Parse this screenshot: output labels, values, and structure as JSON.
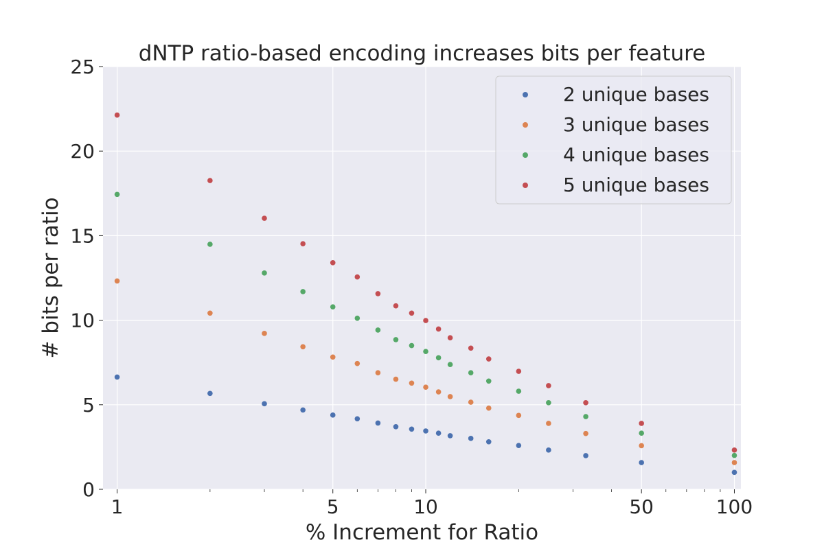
{
  "chart_data": {
    "type": "scatter",
    "title": "dNTP ratio-based encoding increases bits per feature",
    "xlabel": "% Increment for Ratio",
    "ylabel": "# bits per ratio",
    "xscale": "log",
    "xlim": [
      0.9,
      105
    ],
    "ylim": [
      0,
      25
    ],
    "xticks": [
      1,
      5,
      10,
      50,
      100
    ],
    "xtick_labels": [
      "1",
      "5",
      "10",
      "50",
      "100"
    ],
    "yticks": [
      0,
      5,
      10,
      15,
      20,
      25
    ],
    "ytick_labels": [
      "0",
      "5",
      "10",
      "15",
      "20",
      "25"
    ],
    "grid": true,
    "legend_position": "top-right",
    "x": [
      1,
      2,
      3,
      4,
      5,
      6,
      7,
      8,
      9,
      10,
      11,
      12,
      14,
      16,
      20,
      25,
      33,
      50,
      100
    ],
    "series": [
      {
        "name": "2 unique bases",
        "color": "#4c72b0",
        "values": [
          6.64,
          5.67,
          5.06,
          4.69,
          4.39,
          4.17,
          3.92,
          3.7,
          3.56,
          3.45,
          3.32,
          3.17,
          3.01,
          2.81,
          2.59,
          2.32,
          1.99,
          1.58,
          1.0
        ]
      },
      {
        "name": "3 unique bases",
        "color": "#dd8452",
        "values": [
          12.32,
          10.42,
          9.22,
          8.43,
          7.82,
          7.44,
          6.89,
          6.51,
          6.28,
          6.04,
          5.76,
          5.48,
          5.15,
          4.8,
          4.37,
          3.9,
          3.3,
          2.58,
          1.58
        ]
      },
      {
        "name": "4 unique bases",
        "color": "#55a868",
        "values": [
          17.44,
          14.49,
          12.79,
          11.69,
          10.79,
          10.12,
          9.42,
          8.85,
          8.5,
          8.15,
          7.78,
          7.38,
          6.89,
          6.4,
          5.8,
          5.12,
          4.3,
          3.32,
          2.0
        ]
      },
      {
        "name": "5 unique bases",
        "color": "#c44e52",
        "values": [
          22.13,
          18.26,
          16.03,
          14.52,
          13.4,
          12.56,
          11.57,
          10.85,
          10.42,
          9.98,
          9.48,
          8.96,
          8.35,
          7.71,
          6.98,
          6.13,
          5.12,
          3.9,
          2.32
        ]
      }
    ]
  }
}
